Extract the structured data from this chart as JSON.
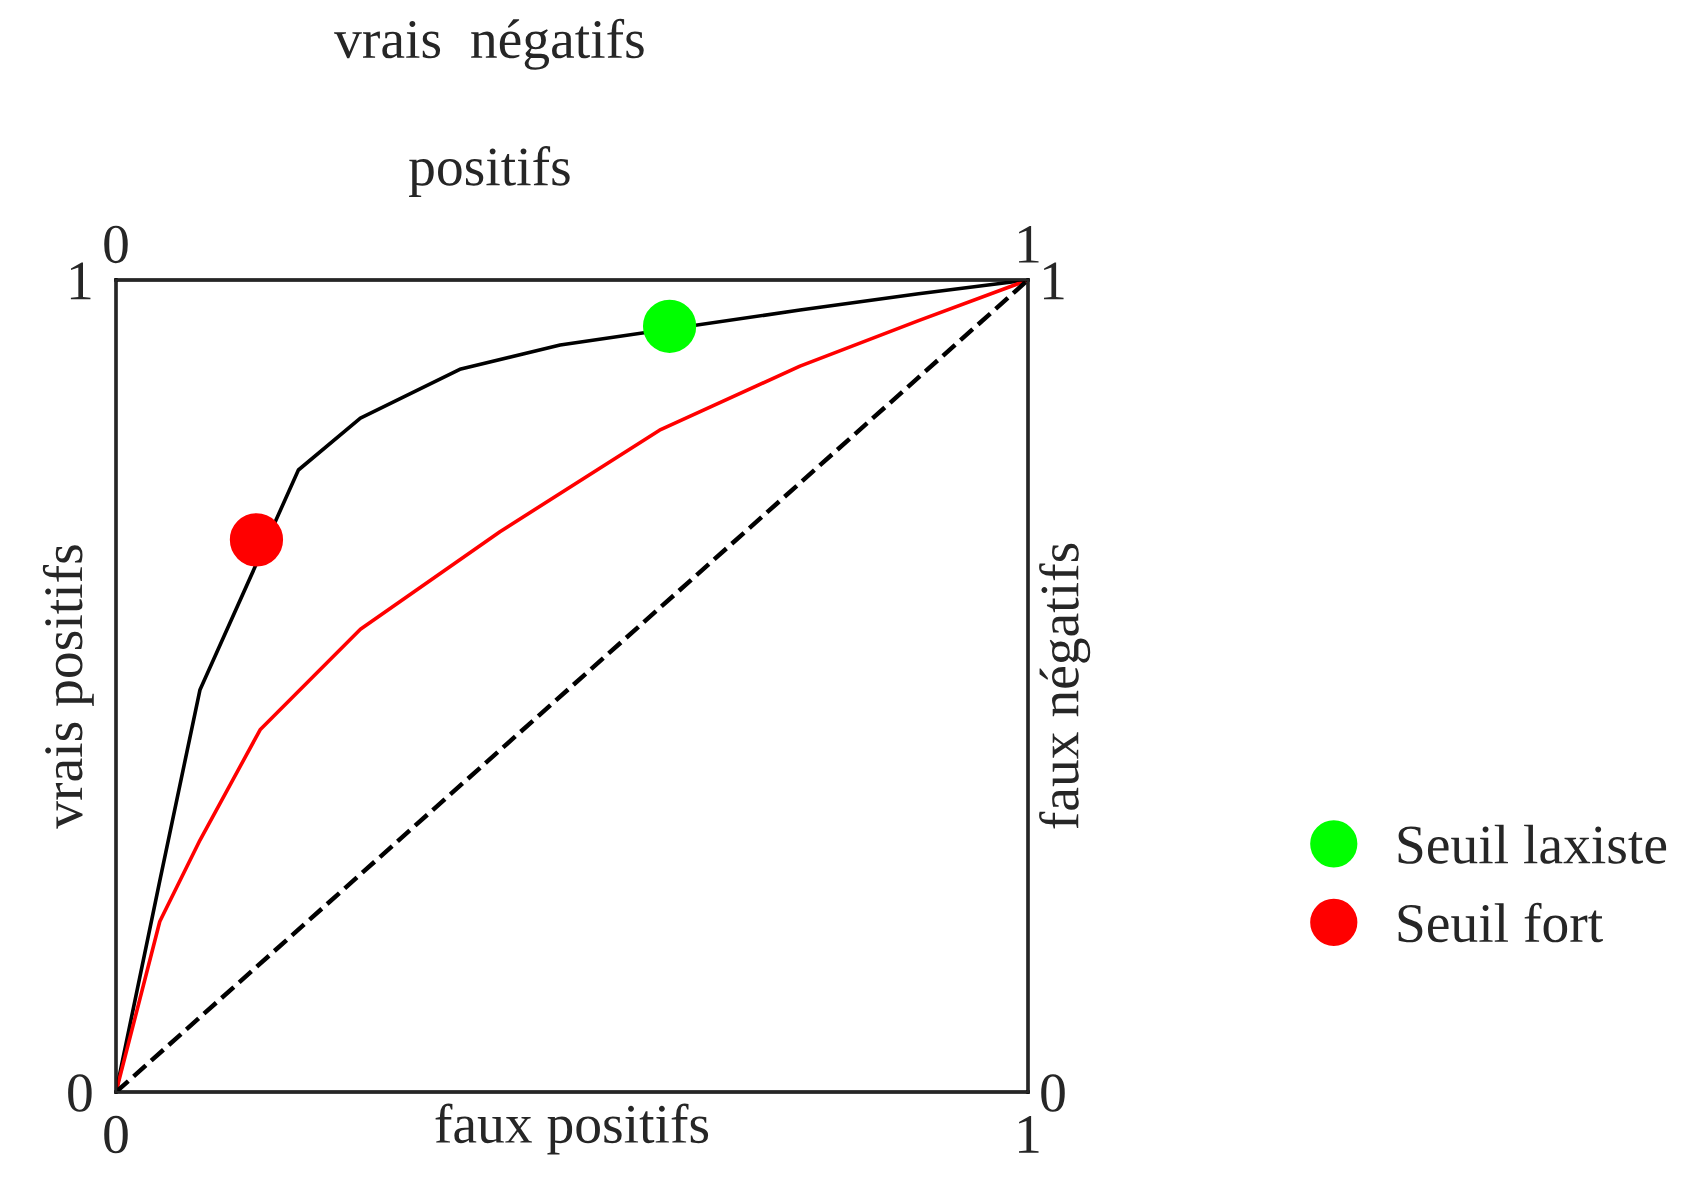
{
  "chart_data": {
    "type": "line",
    "title": "vrais  négatifs",
    "x2label": "positifs",
    "xlabel": "faux positifs",
    "ylabel": "vrais positifs",
    "y2label": "faux négatifs",
    "xlim": [
      0,
      1
    ],
    "xticks": [
      0,
      1
    ],
    "x2lim": [
      0,
      1
    ],
    "x2ticks": [
      0,
      1
    ],
    "ylim": [
      0,
      1
    ],
    "yticks": [
      0,
      1
    ],
    "y2lim": [
      0,
      1
    ],
    "y2ticks": [
      0,
      1
    ],
    "legend": "right",
    "series": [
      {
        "color": "#000000",
        "line_style": "solid",
        "x": [
          0,
          0.048,
          0.092,
          0.2,
          0.268,
          0.377,
          0.487,
          0.75,
          0.88,
          1
        ],
        "values": [
          0,
          0.26,
          0.495,
          0.766,
          0.83,
          0.89,
          0.92,
          0.963,
          0.983,
          1
        ]
      },
      {
        "color": "#ff0000",
        "line_style": "solid",
        "x": [
          0,
          0.048,
          0.092,
          0.158,
          0.268,
          0.421,
          0.596,
          0.75,
          0.88,
          1
        ],
        "values": [
          0,
          0.21,
          0.31,
          0.446,
          0.57,
          0.69,
          0.815,
          0.894,
          0.95,
          1
        ]
      },
      {
        "color": "#000000",
        "line_style": "dashed",
        "x": [
          0,
          1
        ],
        "values": [
          0,
          1
        ]
      },
      {
        "type": "scatter",
        "name": "Seuil laxiste",
        "color": "#00ff00",
        "marker": "circle",
        "x": [
          0.607
        ],
        "values": [
          0.943
        ]
      },
      {
        "type": "scatter",
        "name": "Seuil fort",
        "color": "#ff0000",
        "marker": "circle",
        "x": [
          0.154
        ],
        "values": [
          0.68
        ]
      }
    ]
  }
}
